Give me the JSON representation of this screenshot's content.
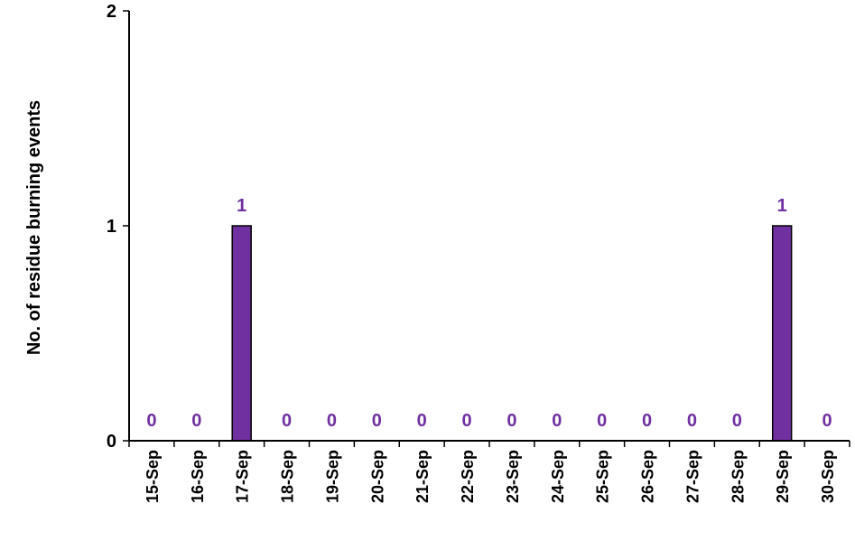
{
  "chart_data": {
    "type": "bar",
    "title": "",
    "xlabel": "",
    "ylabel": "No. of residue burning events",
    "categories": [
      "15-Sep",
      "16-Sep",
      "17-Sep",
      "18-Sep",
      "19-Sep",
      "20-Sep",
      "21-Sep",
      "22-Sep",
      "23-Sep",
      "24-Sep",
      "25-Sep",
      "26-Sep",
      "27-Sep",
      "28-Sep",
      "29-Sep",
      "30-Sep"
    ],
    "values": [
      0,
      0,
      1,
      0,
      0,
      0,
      0,
      0,
      0,
      0,
      0,
      0,
      0,
      0,
      1,
      0
    ],
    "ylim": [
      0,
      2
    ],
    "yticks": [
      0,
      1,
      2
    ],
    "grid": false,
    "legend": "none",
    "colors": {
      "bar": "#7030A0",
      "label": "#7030A0",
      "axis": "#000000"
    }
  }
}
